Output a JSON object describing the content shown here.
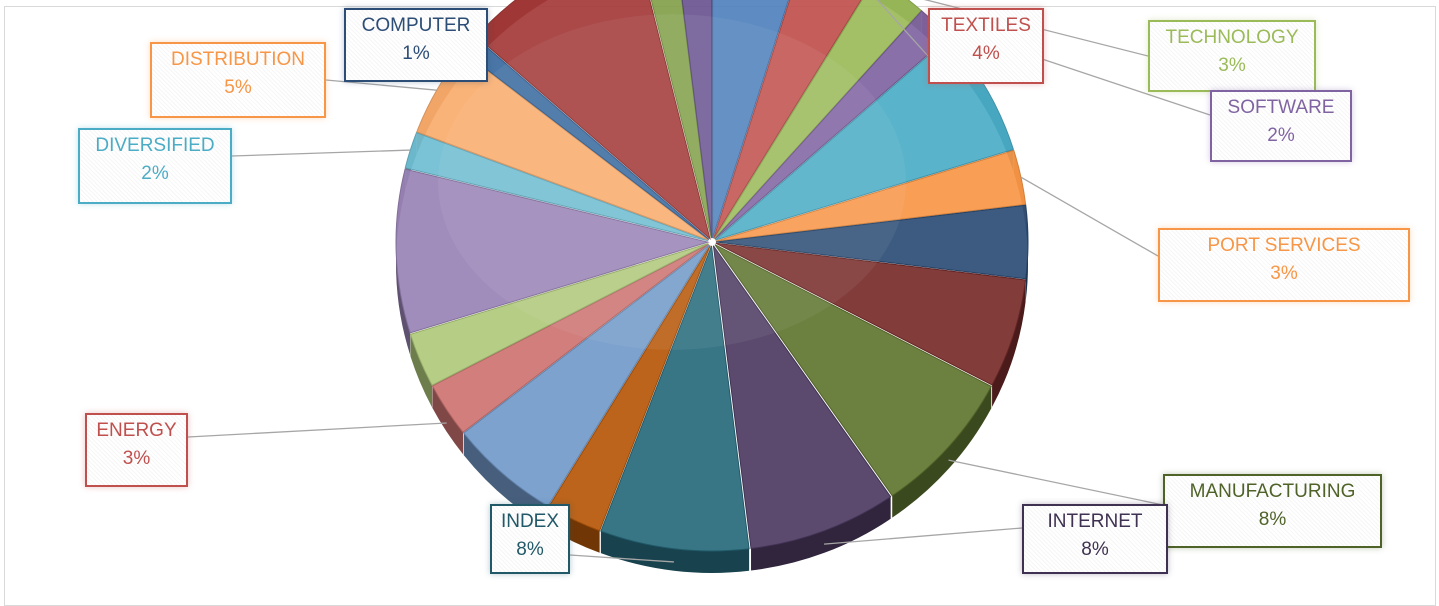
{
  "chart_data": {
    "type": "pie",
    "title": "",
    "slices": [
      {
        "label": "",
        "value": 5,
        "color": "#4f81bd"
      },
      {
        "label": "TEXTILES",
        "value": 4,
        "color": "#c0504d",
        "show_label": true
      },
      {
        "label": "TECHNOLOGY",
        "value": 3,
        "color": "#9bbb59",
        "show_label": true
      },
      {
        "label": "SOFTWARE",
        "value": 2,
        "color": "#8064a2",
        "show_label": true
      },
      {
        "label": "",
        "value": 7,
        "color": "#4bacc6"
      },
      {
        "label": "PORT SERVICES",
        "value": 3,
        "color": "#f79646",
        "show_label": true
      },
      {
        "label": "",
        "value": 4,
        "color": "#2c4d75"
      },
      {
        "label": "",
        "value": 6,
        "color": "#772c2a"
      },
      {
        "label": "MANUFACTURING",
        "value": 8,
        "color": "#5f7530",
        "show_label": true
      },
      {
        "label": "INTERNET",
        "value": 8,
        "color": "#4d3b62",
        "show_label": true
      },
      {
        "label": "INDEX",
        "value": 8,
        "color": "#276a7c",
        "show_label": true
      },
      {
        "label": "",
        "value": 3,
        "color": "#b65708"
      },
      {
        "label": "",
        "value": 6,
        "color": "#729aca"
      },
      {
        "label": "ENERGY",
        "value": 3,
        "color": "#cd7371",
        "show_label": true
      },
      {
        "label": "",
        "value": 3,
        "color": "#afc97a"
      },
      {
        "label": "",
        "value": 9,
        "color": "#9983b5"
      },
      {
        "label": "DIVERSIFIED",
        "value": 2,
        "color": "#6fbdd1",
        "show_label": true
      },
      {
        "label": "DISTRIBUTION",
        "value": 5,
        "color": "#f9ab6b",
        "show_label": true
      },
      {
        "label": "COMPUTER",
        "value": 1,
        "color": "#3a6aa0",
        "show_label": true
      },
      {
        "label": "",
        "value": 10,
        "color": "#a33a38"
      },
      {
        "label": "",
        "value": 2,
        "color": "#82a04a"
      },
      {
        "label": "",
        "value": 2,
        "color": "#6a5590"
      }
    ],
    "data_labels": [
      {
        "name": "TEXTILES",
        "pct": "4%",
        "color": "#c0504d"
      },
      {
        "name": "TECHNOLOGY",
        "pct": "3%",
        "color": "#9bbb59"
      },
      {
        "name": "SOFTWARE",
        "pct": "2%",
        "color": "#8064a2"
      },
      {
        "name": "PORT SERVICES",
        "pct": "3%",
        "color": "#f79646"
      },
      {
        "name": "MANUFACTURING",
        "pct": "8%",
        "color": "#4f6228"
      },
      {
        "name": "INTERNET",
        "pct": "8%",
        "color": "#3f3151"
      },
      {
        "name": "INDEX",
        "pct": "8%",
        "color": "#215968"
      },
      {
        "name": "ENERGY",
        "pct": "3%",
        "color": "#c0504d"
      },
      {
        "name": "DIVERSIFIED",
        "pct": "2%",
        "color": "#4bacc6"
      },
      {
        "name": "DISTRIBUTION",
        "pct": "5%",
        "color": "#f79646"
      },
      {
        "name": "COMPUTER",
        "pct": "1%",
        "color": "#2c4d75"
      }
    ],
    "legend": "none",
    "style": "3d-exploded-pie"
  }
}
